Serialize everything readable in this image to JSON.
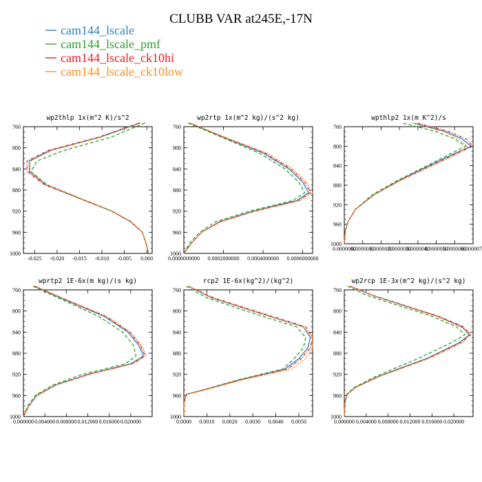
{
  "figure": {
    "title": "CLUBB VAR at245E,-17N",
    "legend": [
      {
        "label": "cam144_lscale",
        "color": "#2f7fc1",
        "dash": ""
      },
      {
        "label": "cam144_lscale_pmf",
        "color": "#2ca02c",
        "dash": "5,3"
      },
      {
        "label": "cam144_lscale_ck10hi",
        "color": "#e41a1c",
        "dash": "4,2,1,2"
      },
      {
        "label": "cam144_lscale_ck10low",
        "color": "#ff8c1a",
        "dash": "2,2"
      }
    ]
  },
  "chart_data": [
    {
      "type": "line",
      "title": "wp2thlp  1x(m^2 K)/s^2",
      "xlim": [
        -0.0275,
        0.0012
      ],
      "ylim": [
        760,
        1000
      ],
      "xticks": [
        "-0.025",
        "-0.020",
        "-0.015",
        "-0.010",
        "-0.005",
        "0.000"
      ],
      "xtick_values": [
        -0.025,
        -0.02,
        -0.015,
        -0.01,
        -0.005,
        0.0
      ],
      "yticks": [
        760,
        800,
        840,
        880,
        920,
        960,
        1000
      ],
      "y": [
        753,
        780,
        805,
        825,
        845,
        870,
        895,
        920,
        940,
        960,
        980,
        1000
      ],
      "series": [
        {
          "name": "cam144_lscale",
          "values": [
            -0.0015,
            -0.0105,
            -0.0215,
            -0.0262,
            -0.0262,
            -0.0225,
            -0.0152,
            -0.0078,
            -0.0036,
            -0.001,
            -0.0002,
            0.0004
          ]
        },
        {
          "name": "cam144_lscale_pmf",
          "values": [
            -0.0004,
            -0.008,
            -0.0185,
            -0.0245,
            -0.0258,
            -0.0222,
            -0.015,
            -0.0077,
            -0.0035,
            -0.001,
            -0.0002,
            0.0004
          ]
        },
        {
          "name": "cam144_lscale_ck10hi",
          "values": [
            -0.0017,
            -0.0108,
            -0.022,
            -0.0267,
            -0.0267,
            -0.0228,
            -0.0153,
            -0.0078,
            -0.0036,
            -0.001,
            -0.0002,
            0.0004
          ]
        },
        {
          "name": "cam144_lscale_ck10low",
          "values": [
            -0.0013,
            -0.0102,
            -0.0212,
            -0.0258,
            -0.026,
            -0.0223,
            -0.0151,
            -0.0077,
            -0.0035,
            -0.001,
            -0.0002,
            0.0004
          ]
        }
      ]
    },
    {
      "type": "line",
      "title": "wp2rtp  1x(m^2 kg)/(s^2 kg)",
      "xlim": [
        0,
        0.00065
      ],
      "ylim": [
        760,
        1000
      ],
      "xticks": [
        "0.0000000000",
        "0.0002000000",
        "0.0004000000",
        "0.0006000000"
      ],
      "xtick_values": [
        0,
        0.0002,
        0.0004,
        0.0006
      ],
      "yticks": [
        760,
        800,
        840,
        880,
        920,
        960,
        1000
      ],
      "y": [
        753,
        780,
        810,
        840,
        865,
        885,
        900,
        920,
        940,
        960,
        980,
        1000
      ],
      "series": [
        {
          "name": "cam144_lscale",
          "values": [
            3e-05,
            0.0002,
            0.0004,
            0.00053,
            0.0006,
            0.00063,
            0.00057,
            0.00035,
            0.00018,
            9e-05,
            4e-05,
            0.0
          ]
        },
        {
          "name": "cam144_lscale_pmf",
          "values": [
            2e-05,
            0.00019,
            0.00038,
            0.00051,
            0.00058,
            0.00061,
            0.00055,
            0.00033,
            0.00016,
            8e-05,
            3e-05,
            0.0
          ]
        },
        {
          "name": "cam144_lscale_ck10hi",
          "values": [
            3e-05,
            0.0002,
            0.00041,
            0.00054,
            0.00061,
            0.00064,
            0.00058,
            0.00036,
            0.00018,
            9e-05,
            4e-05,
            0.0
          ]
        },
        {
          "name": "cam144_lscale_ck10low",
          "values": [
            3e-05,
            0.00021,
            0.00042,
            0.00055,
            0.00062,
            0.00065,
            0.00059,
            0.00036,
            0.00019,
            9e-05,
            4e-05,
            0.0
          ]
        }
      ]
    },
    {
      "type": "line",
      "title": "wpthlp2  1x(m K^2)/s",
      "xlim": [
        0,
        7e-06
      ],
      "ylim": [
        760,
        1000
      ],
      "xticks": [
        "0.0000000",
        "0.0000010",
        "0.0000020",
        "0.0000030",
        "0.0000040",
        "0.0000050",
        "0.0000060",
        "0.0000070"
      ],
      "xtick_values": [
        0,
        1e-06,
        2e-06,
        3e-06,
        4e-06,
        5e-06,
        6e-06,
        7e-06
      ],
      "yticks": [
        760,
        800,
        840,
        880,
        920,
        960,
        1000
      ],
      "y": [
        753,
        770,
        785,
        800,
        815,
        840,
        870,
        900,
        930,
        955,
        975,
        1000
      ],
      "series": [
        {
          "name": "cam144_lscale",
          "values": [
            3.8e-06,
            5.5e-06,
            6.4e-06,
            6.9e-06,
            6e-06,
            4.6e-06,
            3e-06,
            1.6e-06,
            6e-07,
            2e-07,
            5e-08,
            0.0
          ]
        },
        {
          "name": "cam144_lscale_pmf",
          "values": [
            3.2e-06,
            5e-06,
            6e-06,
            6.6e-06,
            5.8e-06,
            4.5e-06,
            2.9e-06,
            1.5e-06,
            6e-07,
            2e-07,
            5e-08,
            0.0
          ]
        },
        {
          "name": "cam144_lscale_ck10hi",
          "values": [
            4e-06,
            5.7e-06,
            6.6e-06,
            7e-06,
            6.1e-06,
            4.7e-06,
            3e-06,
            1.6e-06,
            6e-07,
            2e-07,
            5e-08,
            0.0
          ]
        },
        {
          "name": "cam144_lscale_ck10low",
          "values": [
            3.7e-06,
            5.4e-06,
            6.2e-06,
            6.7e-06,
            6.2e-06,
            4.8e-06,
            3.1e-06,
            1.6e-06,
            6e-07,
            2e-07,
            5e-08,
            0.0
          ]
        }
      ]
    },
    {
      "type": "line",
      "title": "wprtp2  1E-6x(m kg)/(s kg)",
      "xlim": [
        0,
        0.024
      ],
      "ylim": [
        760,
        1000
      ],
      "xticks": [
        "0.000000",
        "0.004000",
        "0.008000",
        "0.012000",
        "0.016000",
        "0.020000"
      ],
      "xtick_values": [
        0,
        0.004,
        0.008,
        0.012,
        0.016,
        0.02
      ],
      "yticks": [
        760,
        800,
        840,
        880,
        920,
        960,
        1000
      ],
      "y": [
        753,
        780,
        810,
        840,
        865,
        885,
        900,
        920,
        940,
        960,
        980,
        1000
      ],
      "series": [
        {
          "name": "cam144_lscale",
          "values": [
            0.002,
            0.008,
            0.015,
            0.0195,
            0.0215,
            0.0224,
            0.02,
            0.012,
            0.006,
            0.0025,
            0.001,
            0.0
          ]
        },
        {
          "name": "cam144_lscale_pmf",
          "values": [
            0.0018,
            0.0075,
            0.014,
            0.0185,
            0.0205,
            0.021,
            0.019,
            0.011,
            0.0055,
            0.0022,
            0.0008,
            0.0
          ]
        },
        {
          "name": "cam144_lscale_ck10hi",
          "values": [
            0.0021,
            0.0082,
            0.0153,
            0.0198,
            0.0218,
            0.0227,
            0.0203,
            0.0122,
            0.0061,
            0.0025,
            0.001,
            0.0
          ]
        },
        {
          "name": "cam144_lscale_ck10low",
          "values": [
            0.0022,
            0.0084,
            0.0156,
            0.02,
            0.022,
            0.0229,
            0.0205,
            0.0124,
            0.0062,
            0.0026,
            0.001,
            0.0
          ]
        }
      ]
    },
    {
      "type": "line",
      "title": "rcp2  1E-6x(kg^2)/(kg^2)",
      "xlim": [
        0,
        0.0056
      ],
      "ylim": [
        760,
        1000
      ],
      "xticks": [
        "0.0000",
        "0.0010",
        "0.0020",
        "0.0030",
        "0.0040",
        "0.0050"
      ],
      "xtick_values": [
        0,
        0.001,
        0.002,
        0.003,
        0.004,
        0.005
      ],
      "yticks": [
        760,
        800,
        840,
        880,
        920,
        960,
        1000
      ],
      "y": [
        753,
        775,
        800,
        830,
        850,
        870,
        890,
        910,
        930,
        950,
        958,
        975,
        1000
      ],
      "series": [
        {
          "name": "cam144_lscale",
          "values": [
            0.0002,
            0.0012,
            0.003,
            0.0052,
            0.0055,
            0.0054,
            0.005,
            0.0044,
            0.0025,
            0.0008,
            0.0001,
            0.0,
            0.0
          ]
        },
        {
          "name": "cam144_lscale_pmf",
          "values": [
            0.0001,
            0.001,
            0.0027,
            0.0049,
            0.0053,
            0.0052,
            0.0048,
            0.0043,
            0.0024,
            0.0008,
            0.0001,
            0.0,
            0.0
          ]
        },
        {
          "name": "cam144_lscale_ck10hi",
          "values": [
            0.0002,
            0.0013,
            0.0031,
            0.0053,
            0.0056,
            0.0055,
            0.0051,
            0.0045,
            0.0025,
            0.0008,
            0.0001,
            0.0,
            0.0
          ]
        },
        {
          "name": "cam144_lscale_ck10low",
          "values": [
            0.0002,
            0.0012,
            0.003,
            0.0052,
            0.0056,
            0.0056,
            0.0053,
            0.0047,
            0.0026,
            0.0009,
            0.0001,
            0.0,
            0.0
          ]
        }
      ]
    },
    {
      "type": "line",
      "title": "wp2rcp  1E-3x(m^2 kg)/(s^2 kg)",
      "xlim": [
        0,
        0.0235
      ],
      "ylim": [
        760,
        1000
      ],
      "xticks": [
        "0.000000",
        "0.004000",
        "0.008000",
        "0.012000",
        "0.016000",
        "0.020000"
      ],
      "xtick_values": [
        0,
        0.004,
        0.008,
        0.012,
        0.016,
        0.02
      ],
      "yticks": [
        760,
        800,
        840,
        880,
        920,
        960,
        1000
      ],
      "y": [
        753,
        770,
        790,
        810,
        830,
        845,
        860,
        875,
        890,
        905,
        925,
        945,
        958,
        975,
        1000
      ],
      "series": [
        {
          "name": "cam144_lscale",
          "values": [
            0.001,
            0.005,
            0.011,
            0.017,
            0.0215,
            0.0228,
            0.021,
            0.018,
            0.015,
            0.011,
            0.006,
            0.002,
            0.0005,
            0.0001,
            0.0
          ]
        },
        {
          "name": "cam144_lscale_pmf",
          "values": [
            0.0006,
            0.004,
            0.01,
            0.016,
            0.0205,
            0.022,
            0.0195,
            0.0165,
            0.0135,
            0.01,
            0.0055,
            0.0018,
            0.0004,
            0.0001,
            0.0
          ]
        },
        {
          "name": "cam144_lscale_ck10hi",
          "values": [
            0.0011,
            0.0052,
            0.0112,
            0.0172,
            0.0218,
            0.023,
            0.0212,
            0.0182,
            0.0152,
            0.0112,
            0.0061,
            0.002,
            0.0005,
            0.0001,
            0.0
          ]
        },
        {
          "name": "cam144_lscale_ck10low",
          "values": [
            0.001,
            0.005,
            0.0108,
            0.0168,
            0.0212,
            0.0232,
            0.0215,
            0.0186,
            0.0155,
            0.0115,
            0.0062,
            0.0021,
            0.0005,
            0.0001,
            0.0
          ]
        }
      ]
    }
  ]
}
